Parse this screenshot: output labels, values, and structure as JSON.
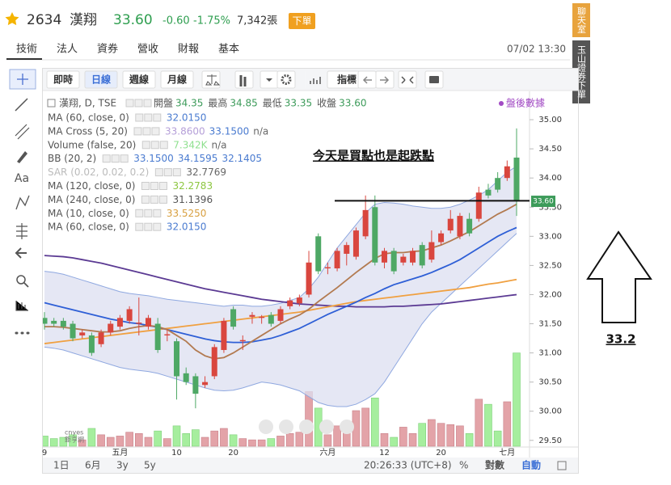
{
  "header": {
    "code": "2634",
    "name": "漢翔",
    "price": "33.60",
    "change": "-0.60",
    "change_pct": "-1.75%",
    "volume": "7,342張",
    "order_button": "下單",
    "datetime": "07/02 13:30"
  },
  "tabs": [
    "技術",
    "法人",
    "資券",
    "營收",
    "財報",
    "基本"
  ],
  "toolbar": [
    "即時",
    "日線",
    "週線",
    "月線",
    "指標"
  ],
  "left_tools": {
    "text": "Aa"
  },
  "side": {
    "chat": "聊天室",
    "order": "玉山證券下單"
  },
  "footer": {
    "ranges": [
      "1日",
      "6月",
      "3y",
      "5y"
    ],
    "time": "20:26:33 (UTC+8)",
    "percent": "%",
    "log": "對數",
    "auto": "自動"
  },
  "chart_data": {
    "type": "candlestick",
    "annotation": "今天是買點也是起跌點",
    "annotation_level": 33.61,
    "side_annotation": "33.2",
    "watermark": [
      "cnyes",
      "鉅亨網"
    ],
    "legend": {
      "title": "漢翔, D, TSE",
      "ohlc": [
        {
          "label": "開盤",
          "value": "34.35"
        },
        {
          "label": "最高",
          "value": "34.85"
        },
        {
          "label": "最低",
          "value": "33.35"
        },
        {
          "label": "收盤",
          "value": "33.60"
        }
      ],
      "after_hours": "盤後數據",
      "rows": [
        {
          "label": "MA (60, close, 0)",
          "values": [
            "32.0150"
          ],
          "colors": [
            "#4a7bd0"
          ]
        },
        {
          "label": "MA Cross (5, 20)",
          "values": [
            "33.8600",
            "33.1500",
            "n/a"
          ],
          "colors": [
            "#b59fd8",
            "#4a7bd0",
            "#666666"
          ]
        },
        {
          "label": "Volume (false, 20)",
          "values": [
            "7.342K",
            "n/a"
          ],
          "colors": [
            "#8fe08f",
            "#666666"
          ]
        },
        {
          "label": "BB (20, 2)",
          "values": [
            "33.1500",
            "34.1595",
            "32.1405"
          ],
          "colors": [
            "#4a7bd0",
            "#4a7bd0",
            "#4a7bd0"
          ]
        },
        {
          "label": "SAR (0.02, 0.02, 0.2)",
          "values": [
            "32.7769"
          ],
          "colors": [
            "#666666"
          ],
          "dim": true
        },
        {
          "label": "MA (120, close, 0)",
          "values": [
            "32.2783"
          ],
          "colors": [
            "#8cc63f"
          ]
        },
        {
          "label": "MA (240, close, 0)",
          "values": [
            "31.1396"
          ],
          "colors": [
            "#555555"
          ]
        },
        {
          "label": "MA (10, close, 0)",
          "values": [
            "33.5250"
          ],
          "colors": [
            "#d8a040"
          ]
        },
        {
          "label": "MA (60, close, 0)",
          "values": [
            "32.0150"
          ],
          "colors": [
            "#4a7bd0"
          ]
        }
      ]
    },
    "categories": [
      "9",
      null,
      null,
      null,
      null,
      null,
      null,
      null,
      "五月",
      null,
      null,
      null,
      null,
      null,
      "10",
      null,
      null,
      null,
      null,
      null,
      "20",
      null,
      null,
      null,
      null,
      null,
      null,
      null,
      null,
      null,
      "六月",
      null,
      null,
      null,
      null,
      null,
      "12",
      null,
      null,
      null,
      null,
      null,
      "20",
      null,
      null,
      null,
      null,
      null,
      null,
      "七月",
      null
    ],
    "open": [
      31.6,
      31.55,
      31.55,
      31.5,
      31.3,
      31.3,
      31.15,
      31.35,
      31.45,
      31.55,
      31.5,
      31.45,
      31.5,
      31.3,
      31.2,
      30.65,
      30.6,
      30.45,
      30.6,
      31.05,
      31.75,
      31.2,
      31.62,
      31.6,
      31.65,
      31.55,
      31.8,
      31.85,
      32.0,
      33.0,
      32.45,
      32.45,
      32.7,
      32.65,
      33.0,
      33.5,
      32.55,
      32.75,
      32.55,
      32.55,
      32.85,
      32.6,
      32.9,
      33.1,
      33.0,
      33.3,
      33.3,
      33.8,
      34.0,
      34.0,
      34.35
    ],
    "high": [
      31.7,
      31.6,
      31.6,
      31.55,
      31.4,
      31.35,
      31.4,
      31.55,
      31.65,
      31.8,
      31.95,
      31.65,
      31.6,
      31.4,
      31.25,
      30.75,
      30.65,
      30.6,
      31.15,
      31.6,
      31.8,
      31.3,
      31.7,
      31.65,
      31.7,
      31.8,
      31.95,
      32.0,
      32.75,
      33.05,
      32.55,
      32.8,
      32.9,
      33.15,
      33.7,
      33.7,
      32.8,
      32.8,
      32.7,
      32.8,
      32.9,
      33.1,
      33.1,
      33.45,
      33.4,
      33.4,
      33.85,
      33.9,
      34.1,
      34.3,
      34.85
    ],
    "low": [
      31.4,
      31.45,
      31.4,
      31.2,
      31.25,
      30.95,
      31.1,
      31.3,
      31.4,
      31.5,
      31.3,
      31.4,
      31.0,
      31.2,
      30.2,
      30.45,
      30.05,
      30.4,
      30.55,
      31.0,
      31.4,
      31.05,
      31.5,
      31.5,
      31.45,
      31.5,
      31.75,
      31.8,
      31.95,
      32.35,
      32.35,
      32.4,
      32.5,
      32.6,
      32.95,
      32.5,
      32.45,
      32.35,
      32.5,
      32.5,
      32.45,
      32.55,
      32.85,
      33.05,
      32.95,
      33.0,
      33.25,
      33.65,
      33.75,
      33.95,
      33.35
    ],
    "close": [
      31.5,
      31.5,
      31.45,
      31.25,
      31.35,
      31.0,
      31.35,
      31.5,
      31.6,
      31.75,
      31.52,
      31.6,
      31.05,
      31.32,
      30.6,
      30.5,
      30.3,
      30.5,
      31.1,
      31.55,
      31.45,
      31.22,
      31.65,
      31.62,
      31.5,
      31.75,
      31.9,
      31.95,
      32.55,
      32.4,
      32.47,
      32.75,
      32.85,
      33.1,
      33.45,
      32.55,
      32.75,
      32.4,
      32.65,
      32.75,
      32.5,
      32.9,
      33.05,
      33.3,
      33.35,
      33.05,
      33.75,
      33.7,
      33.8,
      34.2,
      33.6
    ],
    "up_color": "#d9463e",
    "down_color": "#4ea865",
    "volume": {
      "axis": "y2",
      "up_color": "#e3a3a8",
      "down_color": "#a6ee9e",
      "values": [
        800,
        600,
        700,
        900,
        500,
        1400,
        900,
        700,
        800,
        1100,
        1000,
        700,
        1200,
        600,
        1600,
        1000,
        1300,
        700,
        1200,
        1400,
        900,
        600,
        500,
        500,
        600,
        800,
        1000,
        1100,
        4300,
        3000,
        900,
        1600,
        1300,
        2800,
        3000,
        3800,
        1000,
        700,
        1500,
        1000,
        1800,
        2100,
        1800,
        1700,
        1600,
        1000,
        3700,
        3300,
        1200,
        3500,
        7342
      ]
    },
    "band": {
      "color": "#8fa8e0",
      "fill": "#dcdff0",
      "upper": [
        32.4,
        32.38,
        32.35,
        32.3,
        32.25,
        32.2,
        32.15,
        32.1,
        32.05,
        32.02,
        32.0,
        31.98,
        31.95,
        31.92,
        31.9,
        31.88,
        31.86,
        31.84,
        31.82,
        31.8,
        31.82,
        31.82,
        31.8,
        31.8,
        31.82,
        31.85,
        31.9,
        31.95,
        32.1,
        32.3,
        32.55,
        32.8,
        33.0,
        33.2,
        33.4,
        33.55,
        33.58,
        33.57,
        33.55,
        33.52,
        33.5,
        33.48,
        33.48,
        33.5,
        33.55,
        33.62,
        33.7,
        33.8,
        33.95,
        34.1,
        34.2
      ],
      "lower": [
        31.1,
        31.08,
        31.05,
        31.0,
        30.95,
        30.9,
        30.85,
        30.8,
        30.75,
        30.72,
        30.7,
        30.68,
        30.65,
        30.6,
        30.55,
        30.5,
        30.45,
        30.4,
        30.36,
        30.35,
        30.36,
        30.4,
        30.45,
        30.5,
        30.48,
        30.45,
        30.4,
        30.35,
        30.25,
        30.15,
        30.1,
        30.08,
        30.08,
        30.12,
        30.2,
        30.3,
        30.5,
        30.75,
        31.0,
        31.25,
        31.5,
        31.7,
        31.85,
        32.0,
        32.15,
        32.3,
        32.45,
        32.6,
        32.75,
        32.9,
        33.05
      ]
    },
    "lines": [
      {
        "color": "#5b3a93",
        "values": [
          32.67,
          32.66,
          32.65,
          32.63,
          32.6,
          32.57,
          32.54,
          32.5,
          32.46,
          32.42,
          32.38,
          32.34,
          32.3,
          32.26,
          32.22,
          32.18,
          32.14,
          32.1,
          32.07,
          32.04,
          32.01,
          31.98,
          31.95,
          31.92,
          31.9,
          31.88,
          31.86,
          31.84,
          31.83,
          31.82,
          31.81,
          31.8,
          31.8,
          31.79,
          31.79,
          31.79,
          31.79,
          31.8,
          31.8,
          31.81,
          31.82,
          31.83,
          31.84,
          31.86,
          31.88,
          31.9,
          31.92,
          31.94,
          31.96,
          31.98,
          32.0
        ]
      },
      {
        "color": "#f0a040",
        "values": [
          31.16,
          31.18,
          31.2,
          31.22,
          31.24,
          31.26,
          31.28,
          31.3,
          31.32,
          31.34,
          31.36,
          31.38,
          31.4,
          31.42,
          31.44,
          31.46,
          31.48,
          31.5,
          31.52,
          31.54,
          31.56,
          31.58,
          31.6,
          31.62,
          31.64,
          31.66,
          31.68,
          31.7,
          31.73,
          31.76,
          31.79,
          31.82,
          31.85,
          31.88,
          31.9,
          31.92,
          31.94,
          31.96,
          31.98,
          32.0,
          32.02,
          32.04,
          32.06,
          32.08,
          32.1,
          32.12,
          32.15,
          32.18,
          32.2,
          32.23,
          32.26
        ]
      },
      {
        "color": "#2e5fd6",
        "values": [
          31.86,
          31.82,
          31.78,
          31.74,
          31.7,
          31.66,
          31.62,
          31.58,
          31.55,
          31.52,
          31.5,
          31.47,
          31.44,
          31.4,
          31.36,
          31.32,
          31.28,
          31.24,
          31.21,
          31.19,
          31.18,
          31.18,
          31.19,
          31.22,
          31.25,
          31.3,
          31.36,
          31.42,
          31.5,
          31.58,
          31.66,
          31.73,
          31.8,
          31.87,
          31.95,
          32.02,
          32.1,
          32.17,
          32.22,
          32.27,
          32.32,
          32.38,
          32.45,
          32.52,
          32.6,
          32.7,
          32.8,
          32.9,
          33.0,
          33.08,
          33.15
        ]
      },
      {
        "color": "#b27a50",
        "values": [
          31.45,
          31.45,
          31.44,
          31.42,
          31.4,
          31.38,
          31.36,
          31.36,
          31.38,
          31.42,
          31.45,
          31.47,
          31.45,
          31.4,
          31.3,
          31.2,
          31.05,
          30.95,
          30.9,
          30.92,
          31.0,
          31.1,
          31.2,
          31.3,
          31.4,
          31.5,
          31.58,
          31.65,
          31.75,
          31.88,
          32.0,
          32.12,
          32.25,
          32.38,
          32.5,
          32.62,
          32.7,
          32.72,
          32.72,
          32.74,
          32.75,
          32.8,
          32.85,
          32.92,
          33.0,
          33.08,
          33.18,
          33.28,
          33.38,
          33.46,
          33.55
        ]
      }
    ],
    "ylim": [
      29.4,
      35.5
    ],
    "yticks": [
      {
        "value": 35,
        "label": "35.00"
      },
      {
        "value": 34.5,
        "label": "34.50"
      },
      {
        "value": 34,
        "label": "34.00"
      },
      {
        "value": 33.5,
        "label": "33.50"
      },
      {
        "value": 33,
        "label": "33.00"
      },
      {
        "value": 32.5,
        "label": "32.50"
      },
      {
        "value": 32,
        "label": "32.00"
      },
      {
        "value": 31.5,
        "label": "31.50"
      },
      {
        "value": 31,
        "label": "31.00"
      },
      {
        "value": 30.5,
        "label": "30.50"
      },
      {
        "value": 30,
        "label": "30.00"
      },
      {
        "value": 29.5,
        "label": "29.50"
      }
    ],
    "y2lim": [
      0,
      28000
    ],
    "price_tag": {
      "value": 33.6,
      "label": "33.60",
      "color": "#3d9b5a"
    },
    "grid": false
  }
}
